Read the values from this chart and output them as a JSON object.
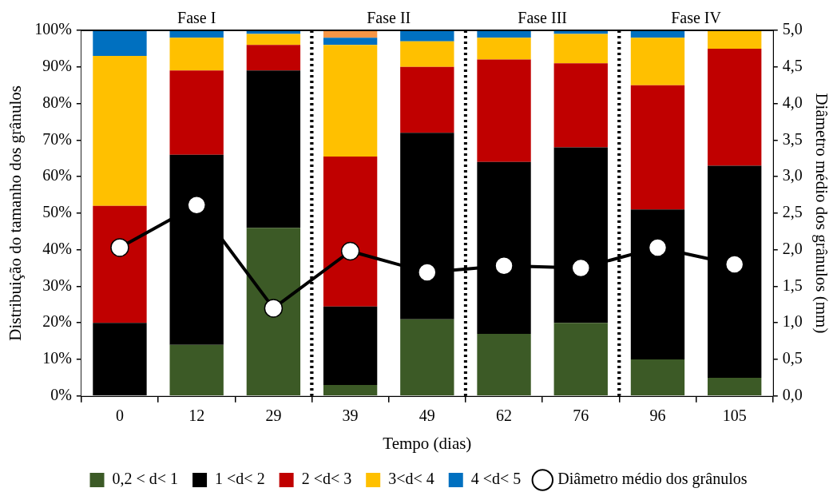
{
  "chart_data": {
    "type": "bar",
    "stacked": true,
    "xlabel": "Tempo (dias)",
    "ylabel": "Distribuição do tamanho dos grânulos",
    "y2label": "Diâmetro médio dos grânulos (mm)",
    "categories": [
      "0",
      "12",
      "29",
      "39",
      "49",
      "62",
      "76",
      "96",
      "105"
    ],
    "series": [
      {
        "name": "0,2 < d< 1",
        "color": "#3c5a26",
        "values": [
          0,
          14,
          46,
          3,
          21,
          17,
          20,
          10,
          5
        ]
      },
      {
        "name": "1 <d< 2",
        "color": "#000000",
        "values": [
          20,
          52,
          43,
          21.5,
          51,
          47,
          48,
          41,
          58
        ]
      },
      {
        "name": "2 <d< 3",
        "color": "#c00000",
        "values": [
          32,
          23,
          7,
          41,
          18,
          28,
          23,
          34,
          32
        ]
      },
      {
        "name": "3<d< 4",
        "color": "#ffc000",
        "values": [
          41,
          9,
          3,
          30.5,
          7,
          6,
          8,
          13,
          5
        ]
      },
      {
        "name": "4 <d< 5",
        "color": "#0070c0",
        "values": [
          7,
          2,
          1,
          2,
          3,
          2,
          1,
          2,
          0
        ]
      },
      {
        "color": "#f79646",
        "values": [
          0,
          0,
          0,
          2,
          0,
          0,
          0,
          0,
          0
        ]
      },
      {
        "name": "Diâmetro médio dos grânulos",
        "type": "line",
        "axis": "y2",
        "color": "#000000",
        "marker": "circle",
        "values": [
          2.03,
          2.61,
          1.2,
          1.98,
          1.69,
          1.78,
          1.75,
          2.03,
          1.8
        ]
      }
    ],
    "ylim": [
      0,
      100
    ],
    "yticks": [
      {
        "value": 0,
        "label": "0%"
      },
      {
        "value": 10,
        "label": "10%"
      },
      {
        "value": 20,
        "label": "20%"
      },
      {
        "value": 30,
        "label": "30%"
      },
      {
        "value": 40,
        "label": "40%"
      },
      {
        "value": 50,
        "label": "50%"
      },
      {
        "value": 60,
        "label": "60%"
      },
      {
        "value": 70,
        "label": "70%"
      },
      {
        "value": 80,
        "label": "80%"
      },
      {
        "value": 90,
        "label": "90%"
      },
      {
        "value": 100,
        "label": "100%"
      }
    ],
    "y2lim": [
      0,
      5
    ],
    "y2ticks": [
      {
        "value": 0,
        "label": "0,0"
      },
      {
        "value": 0.5,
        "label": "0,5"
      },
      {
        "value": 1,
        "label": "1,0"
      },
      {
        "value": 1.5,
        "label": "1,5"
      },
      {
        "value": 2,
        "label": "2,0"
      },
      {
        "value": 2.5,
        "label": "2,5"
      },
      {
        "value": 3,
        "label": "3,0"
      },
      {
        "value": 3.5,
        "label": "3,5"
      },
      {
        "value": 4,
        "label": "4,0"
      },
      {
        "value": 4.5,
        "label": "4,5"
      },
      {
        "value": 5,
        "label": "5,0"
      }
    ],
    "bands": [
      {
        "axis": "x",
        "from": "0",
        "to": "29",
        "label": "Fase I",
        "color": "#ffffff"
      },
      {
        "axis": "x",
        "from": "39",
        "to": "49",
        "label": "Fase II",
        "color": "#ffffff"
      },
      {
        "axis": "x",
        "from": "62",
        "to": "76",
        "label": "Fase III",
        "color": "#ffffff"
      },
      {
        "axis": "x",
        "from": "96",
        "to": "105",
        "label": "Fase IV",
        "color": "#ffffff"
      }
    ],
    "grid": false,
    "legend": "bottom"
  }
}
